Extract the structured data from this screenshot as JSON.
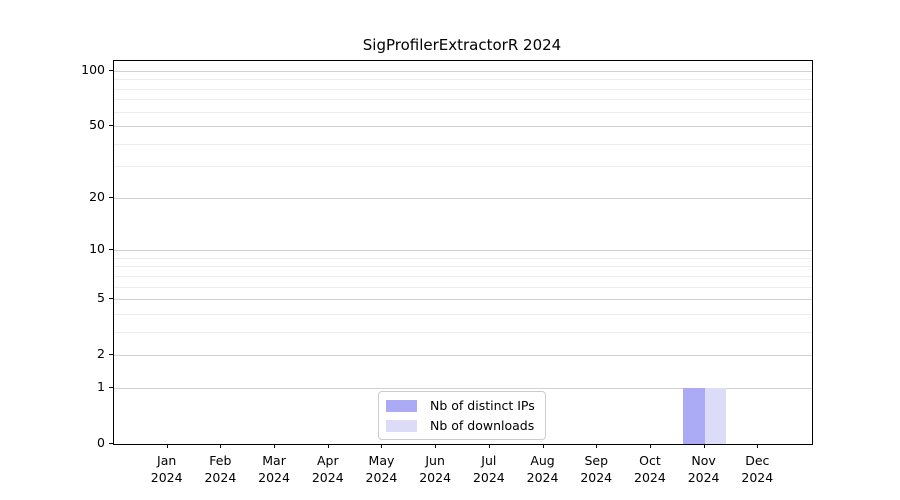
{
  "figure": {
    "background": "#ffffff"
  },
  "chart_data": {
    "type": "bar",
    "title": "SigProfilerExtractorR 2024",
    "categories": [
      "Jan",
      "Feb",
      "Mar",
      "Apr",
      "May",
      "Jun",
      "Jul",
      "Aug",
      "Sep",
      "Oct",
      "Nov",
      "Dec"
    ],
    "x_tick_year": "2024",
    "series": [
      {
        "name": "Nb of distinct IPs",
        "color": "#aaaaf5",
        "values": [
          0,
          0,
          0,
          0,
          0,
          0,
          0,
          0,
          0,
          0,
          1,
          0
        ]
      },
      {
        "name": "Nb of downloads",
        "color": "#dcdcf8",
        "values": [
          0,
          0,
          0,
          0,
          0,
          0,
          0,
          0,
          0,
          0,
          1,
          0
        ]
      }
    ],
    "yaxis": {
      "scale": "log1p",
      "ticks": [
        0,
        1,
        2,
        5,
        10,
        20,
        50,
        100
      ],
      "minor_gridlines": [
        3,
        4,
        6,
        7,
        8,
        9,
        30,
        40,
        60,
        70,
        80,
        90
      ],
      "min": 0,
      "max": 100
    },
    "grid": {
      "major_color": "#d2d2d2",
      "minor_color": "#ededed"
    },
    "legend": {
      "position": "lower center"
    }
  }
}
